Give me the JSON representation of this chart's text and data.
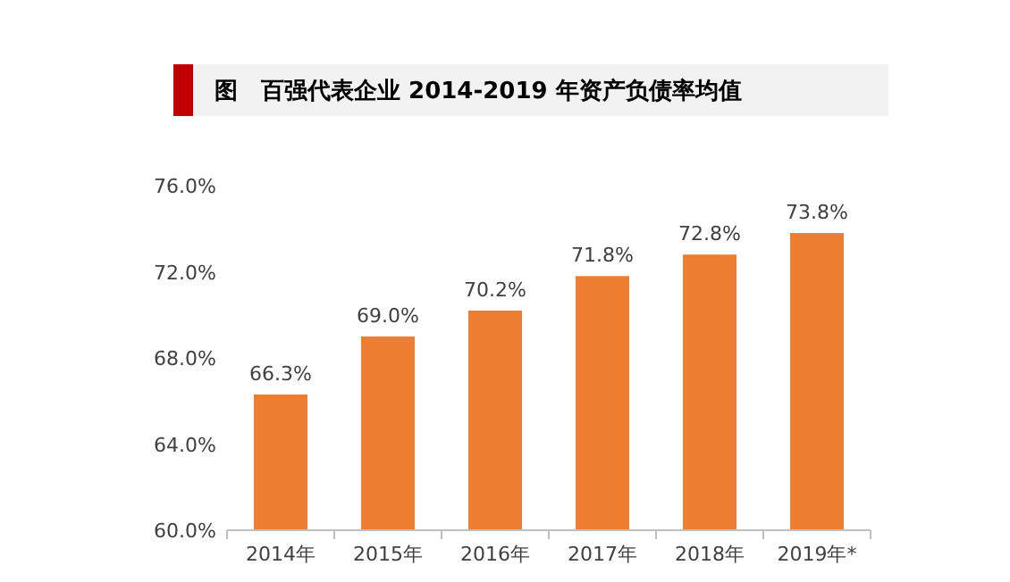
{
  "chart_data": {
    "type": "bar",
    "title": "图　百强代表企业 2014-2019 年资产负债率均值",
    "categories": [
      "2014年",
      "2015年",
      "2016年",
      "2017年",
      "2018年",
      "2019年*"
    ],
    "values": [
      66.3,
      69.0,
      70.2,
      71.8,
      72.8,
      73.8
    ],
    "value_labels": [
      "66.3%",
      "69.0%",
      "70.2%",
      "71.8%",
      "72.8%",
      "73.8%"
    ],
    "color": "#ed7d31",
    "ylim": [
      60,
      76
    ],
    "yticks": [
      {
        "value": 60,
        "label": "60.0%"
      },
      {
        "value": 64,
        "label": "64.0%"
      },
      {
        "value": 68,
        "label": "68.0%"
      },
      {
        "value": 72,
        "label": "72.0%"
      },
      {
        "value": 76,
        "label": "76.0%"
      }
    ]
  }
}
